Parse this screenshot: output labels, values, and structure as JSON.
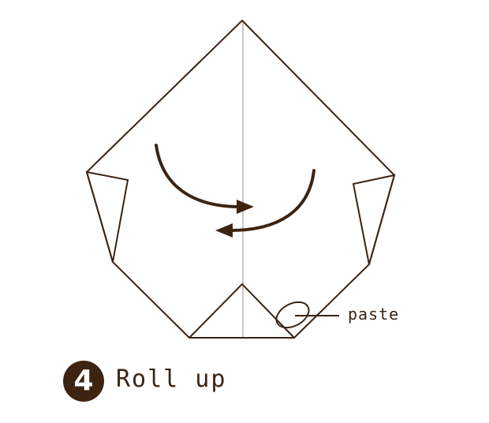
{
  "diagram": {
    "paste_label": "paste",
    "step_number": "4",
    "step_title": "Roll up",
    "colors": {
      "line": "#3a2414",
      "arrow": "#3d2410",
      "center_line": "#c8c8c8",
      "badge_bg": "#3d2410",
      "badge_text": "#ffffff"
    }
  }
}
